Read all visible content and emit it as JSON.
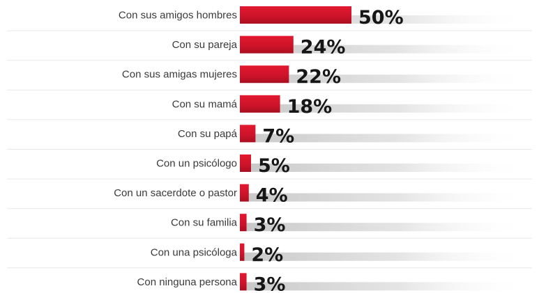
{
  "chart_data": {
    "type": "bar",
    "orientation": "horizontal",
    "categories": [
      "Con sus amigos hombres",
      "Con su pareja",
      "Con sus amigas mujeres",
      "Con su mamá",
      "Con su papá",
      "Con un psicólogo",
      "Con un sacerdote o pastor",
      "Con su familia",
      "Con una psicóloga",
      "Con ninguna persona"
    ],
    "values": [
      50,
      24,
      22,
      18,
      7,
      5,
      4,
      3,
      2,
      3
    ],
    "value_labels": [
      "50%",
      "24%",
      "22%",
      "18%",
      "7%",
      "5%",
      "4%",
      "3%",
      "2%",
      "3%"
    ],
    "unit": "%",
    "xlim": [
      0,
      50
    ],
    "grid": false,
    "legend": "none",
    "colors": {
      "bar": "#d0152b",
      "bar_dark": "#a80f20",
      "shadow": "#c8c8c8",
      "label": "#3a3a3a",
      "value": "#161616",
      "row_line": "#e7e7e7"
    }
  }
}
